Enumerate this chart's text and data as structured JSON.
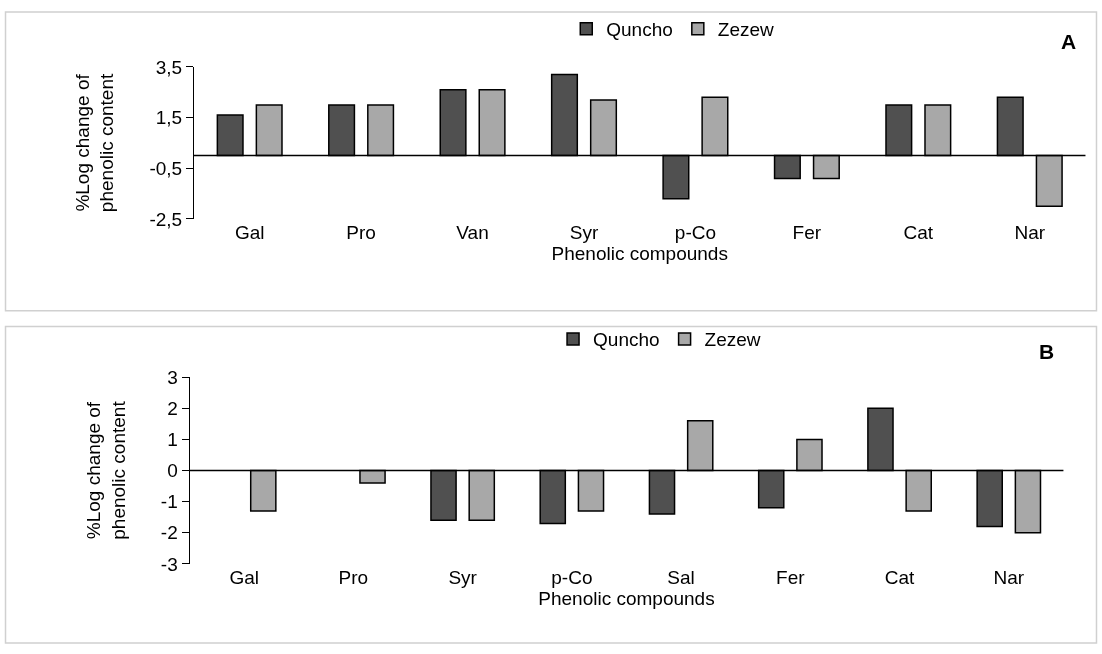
{
  "chart_data": [
    {
      "type": "bar",
      "annotations": [
        "A"
      ],
      "xlabel": "Phenolic compounds",
      "ylabel": "%Log change of\nphenolic content",
      "categories": [
        "Gal",
        "Pro",
        "Van",
        "Syr",
        "p-Co",
        "Fer",
        "Cat",
        "Nar"
      ],
      "series": [
        {
          "name": "Quncho",
          "color": "#505050",
          "values": [
            1.6,
            2.0,
            2.6,
            3.2,
            -1.7,
            -0.9,
            2.0,
            2.3
          ]
        },
        {
          "name": "Zezew",
          "color": "#a8a8a8",
          "values": [
            2.0,
            2.0,
            2.6,
            2.2,
            2.3,
            -0.9,
            2.0,
            -2.0
          ]
        }
      ],
      "ylim": [
        -2.5,
        3.5
      ],
      "yticks": [
        {
          "value": 3.5,
          "label": "3,5"
        },
        {
          "value": 1.5,
          "label": "1,5"
        },
        {
          "value": -0.5,
          "label": "-0,5"
        },
        {
          "value": -2.5,
          "label": "-2,5"
        }
      ],
      "legend": "top"
    },
    {
      "type": "bar",
      "annotations": [
        "B"
      ],
      "xlabel": "Phenolic compounds",
      "ylabel": "%Log change of\nphenolic content",
      "categories": [
        "Gal",
        "Pro",
        "Syr",
        "p-Co",
        "Sal",
        "Fer",
        "Cat",
        "Nar"
      ],
      "series": [
        {
          "name": "Quncho",
          "color": "#505050",
          "values": [
            null,
            null,
            -1.6,
            -1.7,
            -1.4,
            -1.2,
            2.0,
            -1.8
          ]
        },
        {
          "name": "Zezew",
          "color": "#a8a8a8",
          "values": [
            -1.3,
            -0.4,
            -1.6,
            -1.3,
            1.6,
            1.0,
            -1.3,
            -2.0
          ]
        }
      ],
      "ylim": [
        -3,
        3
      ],
      "yticks": [
        3,
        2,
        1,
        0,
        -1,
        -2,
        -3
      ],
      "legend": "top"
    }
  ]
}
